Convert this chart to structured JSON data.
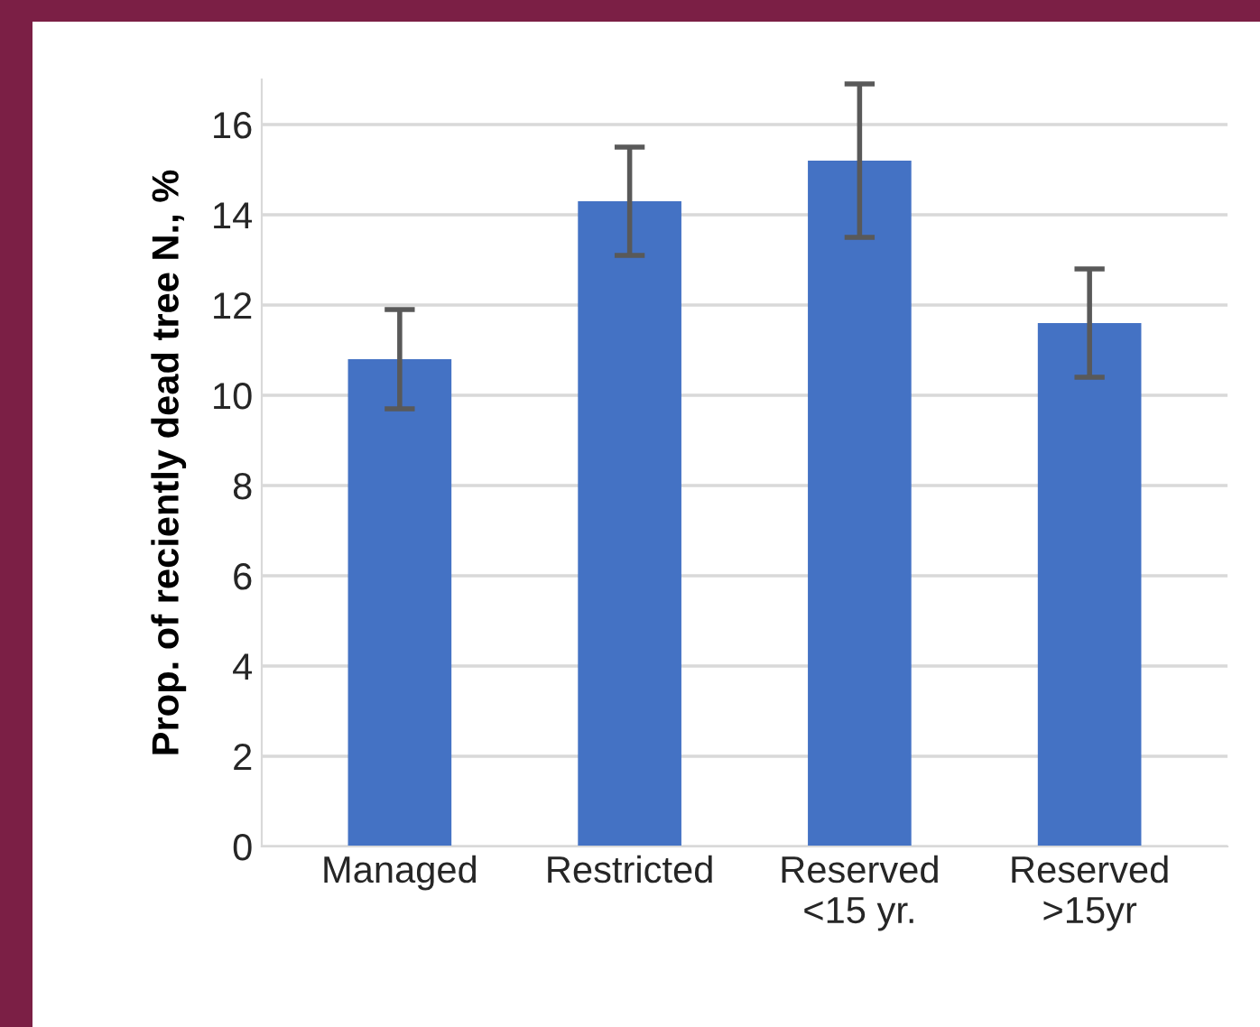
{
  "chart_data": {
    "type": "bar",
    "ylabel": "Prop. of reciently dead tree N., %",
    "categories": [
      "Managed",
      "Restricted",
      "Reserved\n<15 yr.",
      "Reserved\n>15yr"
    ],
    "values": [
      10.8,
      14.3,
      15.2,
      11.6
    ],
    "errors": [
      1.1,
      1.2,
      1.7,
      1.2
    ],
    "color": "#4472c4",
    "ylim": [
      0,
      17
    ],
    "yticks": [
      0,
      2,
      4,
      6,
      8,
      10,
      12,
      14,
      16
    ],
    "grid": "y"
  }
}
